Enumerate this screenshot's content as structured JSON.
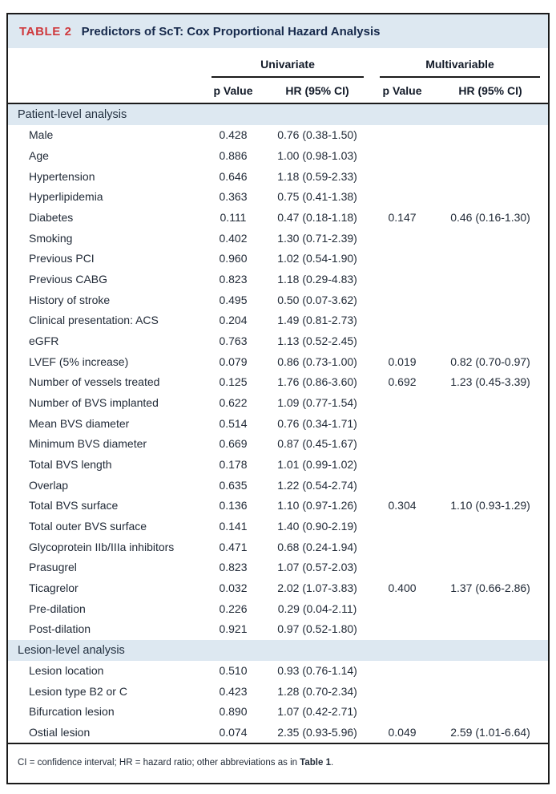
{
  "table": {
    "label": "TABLE 2",
    "title": "Predictors of ScT: Cox Proportional Hazard Analysis",
    "column_groups": [
      "Univariate",
      "Multivariable"
    ],
    "columns": [
      "p Value",
      "HR (95% CI)",
      "p Value",
      "HR (95% CI)"
    ],
    "sections": [
      {
        "name": "Patient-level analysis",
        "rows": [
          [
            "Male",
            "0.428",
            "0.76 (0.38-1.50)",
            "",
            ""
          ],
          [
            "Age",
            "0.886",
            "1.00 (0.98-1.03)",
            "",
            ""
          ],
          [
            "Hypertension",
            "0.646",
            "1.18 (0.59-2.33)",
            "",
            ""
          ],
          [
            "Hyperlipidemia",
            "0.363",
            "0.75 (0.41-1.38)",
            "",
            ""
          ],
          [
            "Diabetes",
            "0.111",
            "0.47 (0.18-1.18)",
            "0.147",
            "0.46 (0.16-1.30)"
          ],
          [
            "Smoking",
            "0.402",
            "1.30 (0.71-2.39)",
            "",
            ""
          ],
          [
            "Previous PCI",
            "0.960",
            "1.02 (0.54-1.90)",
            "",
            ""
          ],
          [
            "Previous CABG",
            "0.823",
            "1.18 (0.29-4.83)",
            "",
            ""
          ],
          [
            "History of stroke",
            "0.495",
            "0.50 (0.07-3.62)",
            "",
            ""
          ],
          [
            "Clinical presentation: ACS",
            "0.204",
            "1.49 (0.81-2.73)",
            "",
            ""
          ],
          [
            "eGFR",
            "0.763",
            "1.13 (0.52-2.45)",
            "",
            ""
          ],
          [
            "LVEF (5% increase)",
            "0.079",
            "0.86 (0.73-1.00)",
            "0.019",
            "0.82 (0.70-0.97)"
          ],
          [
            "Number of vessels treated",
            "0.125",
            "1.76 (0.86-3.60)",
            "0.692",
            "1.23 (0.45-3.39)"
          ],
          [
            "Number of BVS implanted",
            "0.622",
            "1.09 (0.77-1.54)",
            "",
            ""
          ],
          [
            "Mean BVS diameter",
            "0.514",
            "0.76 (0.34-1.71)",
            "",
            ""
          ],
          [
            "Minimum BVS diameter",
            "0.669",
            "0.87 (0.45-1.67)",
            "",
            ""
          ],
          [
            "Total BVS length",
            "0.178",
            "1.01 (0.99-1.02)",
            "",
            ""
          ],
          [
            "Overlap",
            "0.635",
            "1.22 (0.54-2.74)",
            "",
            ""
          ],
          [
            "Total BVS surface",
            "0.136",
            "1.10 (0.97-1.26)",
            "0.304",
            "1.10 (0.93-1.29)"
          ],
          [
            "Total outer BVS surface",
            "0.141",
            "1.40 (0.90-2.19)",
            "",
            ""
          ],
          [
            "Glycoprotein IIb/IIIa inhibitors",
            "0.471",
            "0.68 (0.24-1.94)",
            "",
            ""
          ],
          [
            "Prasugrel",
            "0.823",
            "1.07 (0.57-2.03)",
            "",
            ""
          ],
          [
            "Ticagrelor",
            "0.032",
            "2.02 (1.07-3.83)",
            "0.400",
            "1.37 (0.66-2.86)"
          ],
          [
            "Pre-dilation",
            "0.226",
            "0.29 (0.04-2.11)",
            "",
            ""
          ],
          [
            "Post-dilation",
            "0.921",
            "0.97 (0.52-1.80)",
            "",
            ""
          ]
        ]
      },
      {
        "name": "Lesion-level analysis",
        "rows": [
          [
            "Lesion location",
            "0.510",
            "0.93 (0.76-1.14)",
            "",
            ""
          ],
          [
            "Lesion type B2 or C",
            "0.423",
            "1.28 (0.70-2.34)",
            "",
            ""
          ],
          [
            "Bifurcation lesion",
            "0.890",
            "1.07 (0.42-2.71)",
            "",
            ""
          ],
          [
            "Ostial lesion",
            "0.074",
            "2.35 (0.93-5.96)",
            "0.049",
            "2.59 (1.01-6.64)"
          ]
        ]
      }
    ],
    "footnote": {
      "pre": "CI = confidence interval; HR = hazard ratio; other abbreviations as in ",
      "bold": "Table 1",
      "post": "."
    }
  },
  "colors": {
    "accent_red": "#cf393d",
    "band_blue": "#dde8f1",
    "heading_navy": "#16294b",
    "body_text": "#222b38",
    "rule_dark": "#1a1a1a"
  }
}
